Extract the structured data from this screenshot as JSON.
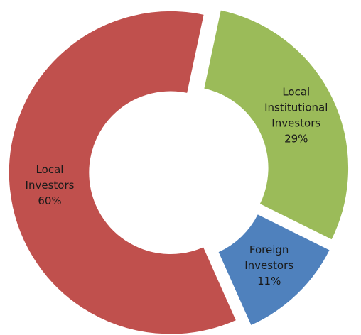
{
  "chart_data": {
    "type": "donut",
    "categories": [
      "Local Institutional Investors",
      "Foreign Investors",
      "Local Investors"
    ],
    "values": [
      29,
      11,
      60
    ],
    "value_labels": [
      "29%",
      "11%",
      "60%"
    ],
    "colors": [
      "#9bbb59",
      "#4f81bd",
      "#c0504d"
    ]
  }
}
